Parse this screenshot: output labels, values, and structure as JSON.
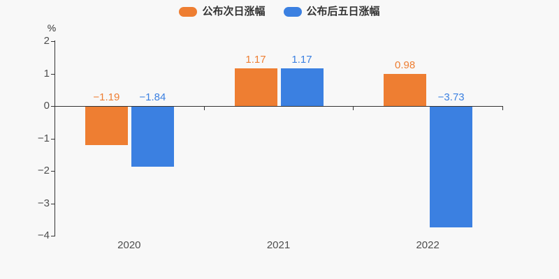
{
  "chart_data": {
    "type": "bar",
    "categories": [
      "2020",
      "2021",
      "2022"
    ],
    "series": [
      {
        "name": "公布次日涨幅",
        "color": "#ee7e32",
        "values": [
          -1.19,
          1.17,
          0.98
        ]
      },
      {
        "name": "公布后五日涨幅",
        "color": "#3b80e1",
        "values": [
          -1.84,
          1.17,
          -3.73
        ]
      }
    ],
    "value_labels": {
      "series0": [
        "−1.19",
        "1.17",
        "0.98"
      ],
      "series1": [
        "−1.84",
        "1.17",
        "−3.73"
      ]
    },
    "title": "",
    "xlabel": "",
    "ylabel": "%",
    "ylim": [
      -4,
      2
    ],
    "yticks": [
      2,
      1,
      0,
      -1,
      -2,
      -3,
      -4
    ],
    "grid": false,
    "legend_position": "top",
    "background": "#f8f8f8",
    "axis_color": "#333333",
    "tick_label_color": "#4e4e4e"
  }
}
